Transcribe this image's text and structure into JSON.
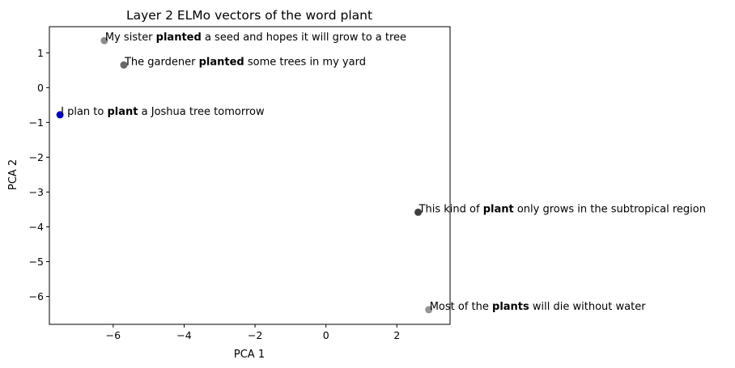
{
  "chart_data": {
    "type": "scatter",
    "title": "Layer 2 ELMo vectors of the word plant",
    "xlabel": "PCA 1",
    "ylabel": "PCA 2",
    "xlim": [
      -7.8,
      3.5
    ],
    "ylim": [
      -6.8,
      1.75
    ],
    "xticks": [
      -6,
      -4,
      -2,
      0,
      2
    ],
    "yticks": [
      1,
      0,
      -1,
      -2,
      -3,
      -4,
      -5,
      -6
    ],
    "xtick_labels": [
      "−6",
      "−4",
      "−2",
      "0",
      "2"
    ],
    "ytick_labels": [
      "1",
      "0",
      "−1",
      "−2",
      "−3",
      "−4",
      "−5",
      "−6"
    ],
    "grid": false,
    "points": [
      {
        "x": -6.25,
        "y": 1.35,
        "color": "#8c8c8c",
        "label": {
          "pre": "My sister ",
          "bold": "planted",
          "post": " a seed and hopes it will grow to a tree"
        }
      },
      {
        "x": -5.7,
        "y": 0.65,
        "color": "#696969",
        "label": {
          "pre": "The gardener ",
          "bold": "planted",
          "post": " some trees in my yard"
        }
      },
      {
        "x": -7.5,
        "y": -0.78,
        "color": "#0000cc",
        "label": {
          "pre": "I plan to ",
          "bold": "plant",
          "post": " a Joshua tree tomorrow"
        }
      },
      {
        "x": 2.6,
        "y": -3.58,
        "color": "#404040",
        "label": {
          "pre": "This kind of ",
          "bold": "plant",
          "post": " only grows in the subtropical region"
        }
      },
      {
        "x": 2.9,
        "y": -6.38,
        "color": "#959595",
        "label": {
          "pre": "Most of the ",
          "bold": "plants",
          "post": " will die without water"
        }
      }
    ]
  }
}
